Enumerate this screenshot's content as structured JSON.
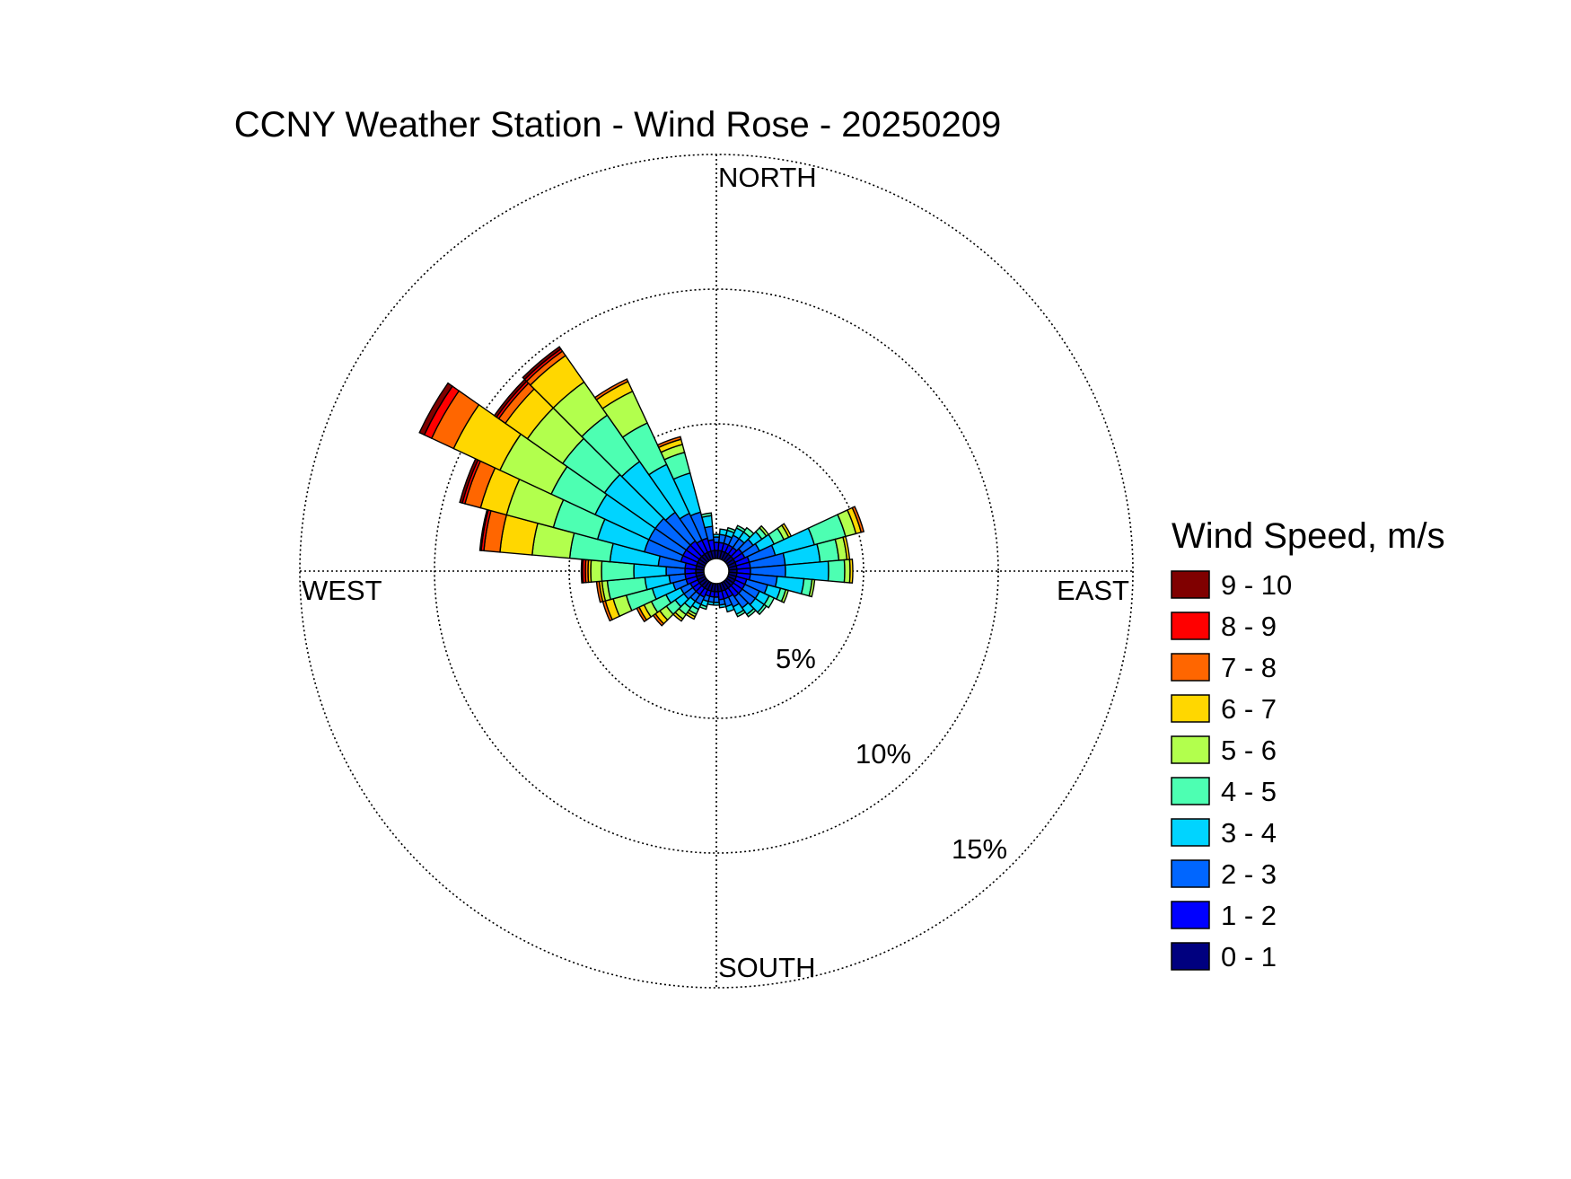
{
  "chart_data": {
    "type": "windrose",
    "title": "CCNY Weather Station - Wind Rose - 20250209",
    "directions": {
      "north": "NORTH",
      "east": "EAST",
      "south": "SOUTH",
      "west": "WEST"
    },
    "rings": [
      {
        "value": 5,
        "label": "5%"
      },
      {
        "value": 10,
        "label": "10%"
      },
      {
        "value": 15,
        "label": "15%"
      }
    ],
    "rmax": 15.5,
    "legend": {
      "title": "Wind Speed, m/s",
      "placement": "right"
    },
    "speed_bins": [
      {
        "label": "0 - 1",
        "color": "#00007f"
      },
      {
        "label": "1 - 2",
        "color": "#0000ff"
      },
      {
        "label": "2 - 3",
        "color": "#0066ff"
      },
      {
        "label": "3 - 4",
        "color": "#00d4ff"
      },
      {
        "label": "4 - 5",
        "color": "#4dffb2"
      },
      {
        "label": "5 - 6",
        "color": "#b2ff4d"
      },
      {
        "label": "6 - 7",
        "color": "#ffd700"
      },
      {
        "label": "7 - 8",
        "color": "#ff6600"
      },
      {
        "label": "8 - 9",
        "color": "#ff0000"
      },
      {
        "label": "9 - 10",
        "color": "#800000"
      }
    ],
    "sector_width_deg": 10,
    "sectors": [
      {
        "dir": 0,
        "values": [
          0.3,
          0.3,
          0.2,
          0.1,
          0,
          0,
          0,
          0,
          0,
          0
        ]
      },
      {
        "dir": 10,
        "values": [
          0.3,
          0.3,
          0.3,
          0.2,
          0,
          0,
          0,
          0,
          0,
          0
        ]
      },
      {
        "dir": 20,
        "values": [
          0.3,
          0.3,
          0.3,
          0.2,
          0.1,
          0,
          0,
          0,
          0,
          0
        ]
      },
      {
        "dir": 30,
        "values": [
          0.3,
          0.3,
          0.4,
          0.3,
          0.1,
          0,
          0,
          0,
          0,
          0
        ]
      },
      {
        "dir": 40,
        "values": [
          0.3,
          0.3,
          0.4,
          0.3,
          0.2,
          0,
          0,
          0,
          0,
          0
        ]
      },
      {
        "dir": 50,
        "values": [
          0.3,
          0.4,
          0.5,
          0.4,
          0.2,
          0.1,
          0,
          0,
          0,
          0
        ]
      },
      {
        "dir": 60,
        "values": [
          0.3,
          0.4,
          0.6,
          0.6,
          0.4,
          0.2,
          0.1,
          0,
          0,
          0
        ]
      },
      {
        "dir": 70,
        "values": [
          0.3,
          0.5,
          1.0,
          1.5,
          1.2,
          0.4,
          0.2,
          0.1,
          0,
          0
        ]
      },
      {
        "dir": 80,
        "values": [
          0.3,
          0.5,
          1.3,
          1.3,
          0.7,
          0.3,
          0.1,
          0,
          0,
          0
        ]
      },
      {
        "dir": 90,
        "values": [
          0.3,
          0.5,
          1.3,
          1.6,
          0.6,
          0.2,
          0.1,
          0,
          0,
          0
        ]
      },
      {
        "dir": 100,
        "values": [
          0.3,
          0.5,
          1.0,
          1.0,
          0.3,
          0.1,
          0,
          0,
          0,
          0
        ]
      },
      {
        "dir": 110,
        "values": [
          0.3,
          0.4,
          0.8,
          0.5,
          0.2,
          0.1,
          0,
          0,
          0,
          0
        ]
      },
      {
        "dir": 120,
        "values": [
          0.3,
          0.4,
          0.6,
          0.4,
          0.2,
          0,
          0,
          0,
          0,
          0
        ]
      },
      {
        "dir": 130,
        "values": [
          0.3,
          0.4,
          0.6,
          0.4,
          0.1,
          0,
          0,
          0,
          0,
          0
        ]
      },
      {
        "dir": 140,
        "values": [
          0.3,
          0.4,
          0.5,
          0.3,
          0.1,
          0,
          0,
          0,
          0,
          0
        ]
      },
      {
        "dir": 150,
        "values": [
          0.3,
          0.3,
          0.4,
          0.3,
          0.1,
          0,
          0,
          0,
          0,
          0
        ]
      },
      {
        "dir": 160,
        "values": [
          0.3,
          0.3,
          0.3,
          0.2,
          0,
          0,
          0,
          0,
          0,
          0
        ]
      },
      {
        "dir": 170,
        "values": [
          0.3,
          0.3,
          0.2,
          0.1,
          0,
          0,
          0,
          0,
          0,
          0
        ]
      },
      {
        "dir": 180,
        "values": [
          0.3,
          0.2,
          0.2,
          0.1,
          0,
          0,
          0,
          0,
          0,
          0
        ]
      },
      {
        "dir": 190,
        "values": [
          0.3,
          0.2,
          0.2,
          0.1,
          0,
          0,
          0,
          0,
          0,
          0
        ]
      },
      {
        "dir": 200,
        "values": [
          0.3,
          0.2,
          0.2,
          0.2,
          0.1,
          0,
          0,
          0,
          0,
          0
        ]
      },
      {
        "dir": 210,
        "values": [
          0.3,
          0.3,
          0.3,
          0.2,
          0.2,
          0.1,
          0.1,
          0,
          0,
          0
        ]
      },
      {
        "dir": 220,
        "values": [
          0.3,
          0.3,
          0.3,
          0.3,
          0.3,
          0.2,
          0.1,
          0,
          0,
          0
        ]
      },
      {
        "dir": 230,
        "values": [
          0.3,
          0.3,
          0.4,
          0.4,
          0.4,
          0.3,
          0.2,
          0.1,
          0,
          0
        ]
      },
      {
        "dir": 240,
        "values": [
          0.3,
          0.3,
          0.4,
          0.6,
          0.6,
          0.3,
          0.2,
          0.1,
          0,
          0
        ]
      },
      {
        "dir": 250,
        "values": [
          0.3,
          0.4,
          0.5,
          0.8,
          1.0,
          0.5,
          0.3,
          0.1,
          0,
          0
        ]
      },
      {
        "dir": 260,
        "values": [
          0.3,
          0.4,
          0.6,
          0.9,
          1.4,
          0.2,
          0.1,
          0.1,
          0,
          0
        ]
      },
      {
        "dir": 270,
        "values": [
          0.3,
          0.4,
          0.7,
          1.2,
          1.2,
          0.4,
          0.1,
          0.1,
          0.1,
          0.05
        ]
      },
      {
        "dir": 280,
        "values": [
          0.3,
          0.4,
          1.0,
          1.8,
          1.5,
          1.4,
          1.2,
          0.6,
          0.1,
          0.05
        ]
      },
      {
        "dir": 290,
        "values": [
          0.3,
          0.6,
          1.4,
          1.8,
          1.7,
          1.8,
          1.0,
          0.6,
          0.1,
          0.1
        ]
      },
      {
        "dir": 300,
        "values": [
          0.3,
          0.6,
          1.4,
          2.2,
          1.8,
          2.1,
          1.9,
          0.9,
          0.3,
          0.2
        ]
      },
      {
        "dir": 310,
        "values": [
          0.3,
          0.6,
          1.4,
          2.3,
          1.9,
          1.6,
          1.0,
          0.3,
          0.1,
          0.1
        ]
      },
      {
        "dir": 320,
        "values": [
          0.3,
          0.6,
          1.3,
          2.3,
          2.1,
          1.5,
          1.2,
          0.2,
          0.1,
          0.1
        ]
      },
      {
        "dir": 330,
        "values": [
          0.3,
          0.5,
          1.1,
          2.0,
          1.7,
          1.3,
          0.4,
          0.1,
          0,
          0
        ]
      },
      {
        "dir": 340,
        "values": [
          0.3,
          0.5,
          1.0,
          1.5,
          0.8,
          0.3,
          0.2,
          0.1,
          0,
          0
        ]
      },
      {
        "dir": 350,
        "values": [
          0.3,
          0.4,
          0.5,
          0.4,
          0.1,
          0,
          0,
          0,
          0,
          0
        ]
      }
    ]
  }
}
